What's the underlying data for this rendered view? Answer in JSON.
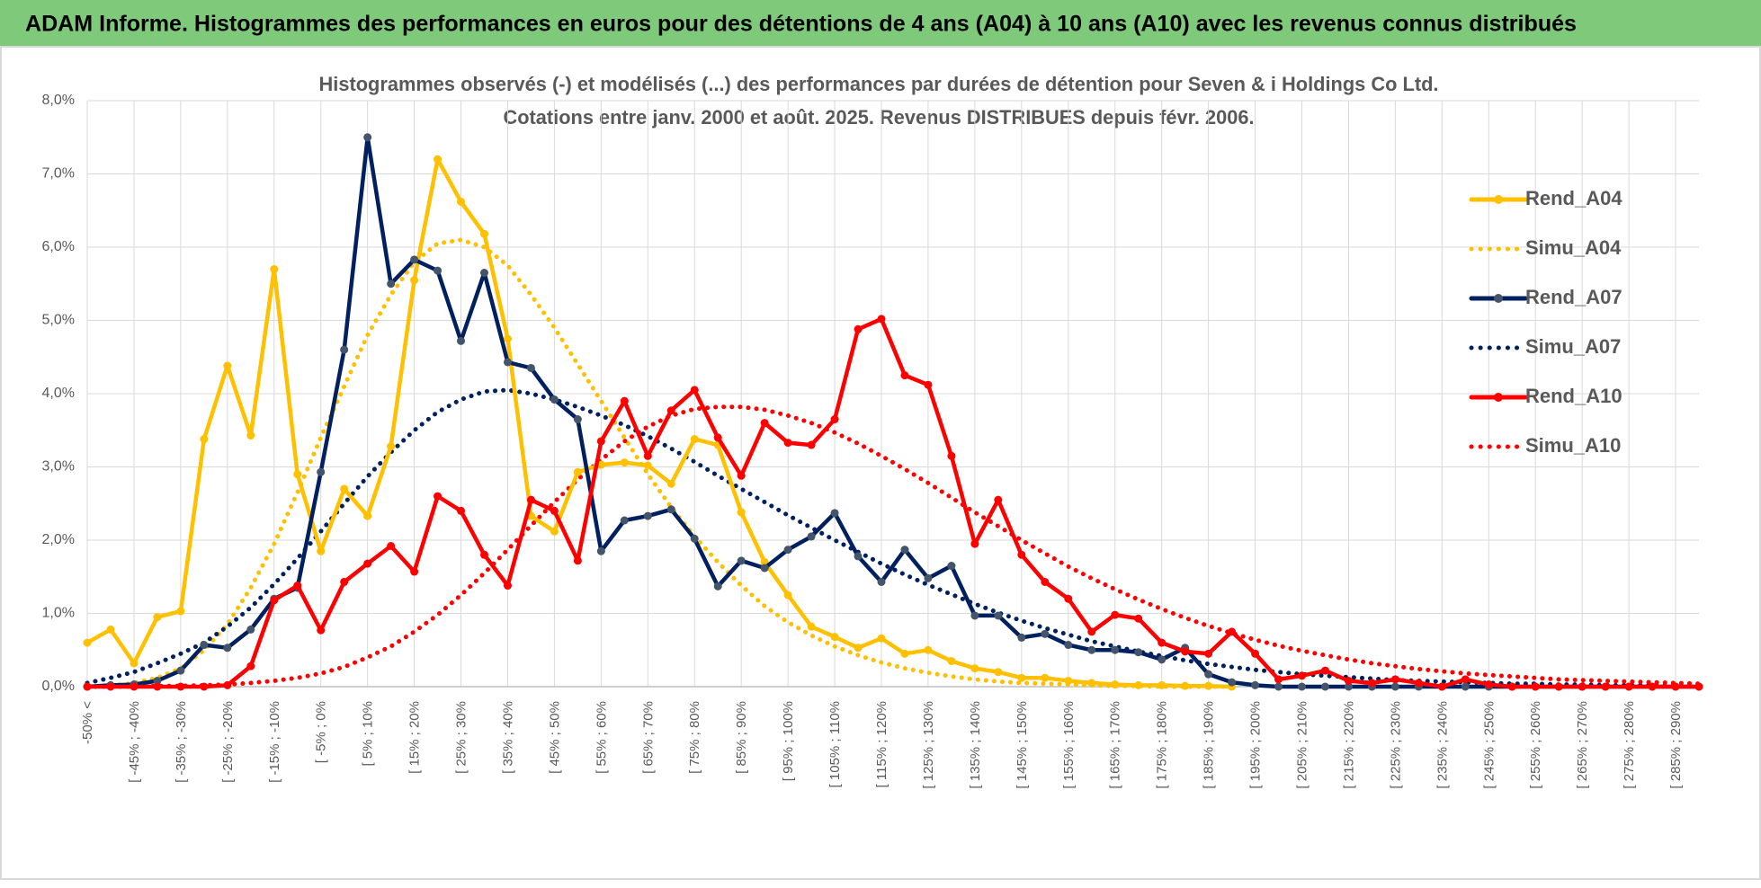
{
  "header": {
    "title": "ADAM Informe. Histogrammes des performances en euros pour des détentions de 4 ans (A04) à 10 ans (A10) avec les revenus connus distribués"
  },
  "chart_data": {
    "type": "line",
    "title": "Histogrammes observés (-) et modélisés (...) des performances par durées de détention pour Seven & i Holdings Co Ltd.",
    "subtitle": "Cotations entre janv. 2000 et août. 2025. Revenus DISTRIBUES depuis févr. 2006.",
    "categories": [
      "-50% <",
      null,
      "[ -45% ; -40%",
      null,
      "[ -35% ; -30%",
      null,
      "[ -25% ; -20%",
      null,
      "[ -15% ; -10%",
      null,
      "[ -5% ; 0%",
      null,
      "[ 5% ; 10%",
      null,
      "[ 15% ; 20%",
      null,
      "[ 25% ; 30%",
      null,
      "[ 35% ; 40%",
      null,
      "[ 45% ; 50%",
      null,
      "[ 55% ; 60%",
      null,
      "[ 65% ; 70%",
      null,
      "[ 75% ; 80%",
      null,
      "[ 85% ; 90%",
      null,
      "[ 95% ; 100%",
      null,
      "[ 105% ; 110%",
      null,
      "[ 115% ; 120%",
      null,
      "[ 125% ; 130%",
      null,
      "[ 135% ; 140%",
      null,
      "[ 145% ; 150%",
      null,
      "[ 155% ; 160%",
      null,
      "[ 165% ; 170%",
      null,
      "[ 175% ; 180%",
      null,
      "[ 185% ; 190%",
      null,
      "[ 195% ; 200%",
      null,
      "[ 205% ; 210%",
      null,
      "[ 215% ; 220%",
      null,
      "[ 225% ; 230%",
      null,
      "[ 235% ; 240%",
      null,
      "[ 245% ; 250%",
      null,
      "[ 255% ; 260%",
      null,
      "[ 265% ; 270%",
      null,
      "[ 275% ; 280%",
      null,
      "[ 285% ; 290%",
      null
    ],
    "ylim": [
      0,
      8
    ],
    "yticks": [
      {
        "value": 0,
        "label": "0,0%"
      },
      {
        "value": 1,
        "label": "1,0%"
      },
      {
        "value": 2,
        "label": "2,0%"
      },
      {
        "value": 3,
        "label": "3,0%"
      },
      {
        "value": 4,
        "label": "4,0%"
      },
      {
        "value": 5,
        "label": "5,0%"
      },
      {
        "value": 6,
        "label": "6,0%"
      },
      {
        "value": 7,
        "label": "7,0%"
      },
      {
        "value": 8,
        "label": "8,0%"
      }
    ],
    "grid": true,
    "legend": "right",
    "series": [
      {
        "name": "Rend_A04",
        "color": "#ffc000",
        "style": "solid",
        "marker": true,
        "marker_color": "#ffc000",
        "values": [
          0.6,
          0.78,
          0.32,
          0.95,
          1.03,
          3.38,
          4.38,
          3.43,
          5.7,
          2.9,
          1.85,
          2.7,
          2.33,
          3.28,
          5.55,
          7.2,
          6.62,
          6.18,
          4.75,
          2.33,
          2.12,
          2.93,
          3.03,
          3.06,
          3.02,
          2.77,
          3.38,
          3.3,
          2.38,
          1.7,
          1.25,
          0.82,
          0.68,
          0.53,
          0.66,
          0.45,
          0.5,
          0.35,
          0.25,
          0.2,
          0.12,
          0.12,
          0.08,
          0.05,
          0.03,
          0.02,
          0.02,
          0.01,
          0.01,
          0,
          null,
          null,
          null,
          null,
          null,
          null,
          null,
          null,
          null,
          null,
          null,
          null,
          null,
          null,
          null,
          null,
          null,
          null,
          null,
          null
        ]
      },
      {
        "name": "Simu_A04",
        "color": "#ffc000",
        "style": "dotted",
        "marker": false,
        "values": [
          0,
          0.01,
          0.05,
          0.12,
          0.25,
          0.5,
          0.85,
          1.35,
          1.95,
          2.65,
          3.4,
          4.1,
          4.8,
          5.35,
          5.8,
          6.05,
          6.1,
          6.0,
          5.75,
          5.35,
          4.9,
          4.4,
          3.9,
          3.4,
          2.9,
          2.45,
          2.05,
          1.7,
          1.38,
          1.1,
          0.88,
          0.7,
          0.55,
          0.43,
          0.33,
          0.25,
          0.19,
          0.14,
          0.1,
          0.07,
          0.05,
          0.04,
          0.03,
          0.02,
          0.01,
          0.01,
          0,
          0,
          0,
          0,
          null,
          null,
          null,
          null,
          null,
          null,
          null,
          null,
          null,
          null,
          null,
          null,
          null,
          null,
          null,
          null,
          null,
          null,
          null,
          null
        ]
      },
      {
        "name": "Rend_A07",
        "color": "#002060",
        "style": "solid",
        "marker": true,
        "marker_color": "#44546a",
        "values": [
          0,
          0.02,
          0.03,
          0.08,
          0.22,
          0.57,
          0.53,
          0.78,
          1.2,
          1.35,
          2.93,
          4.6,
          7.5,
          5.5,
          5.83,
          5.68,
          4.72,
          5.65,
          4.43,
          4.35,
          3.92,
          3.65,
          1.85,
          2.27,
          2.33,
          2.42,
          2.02,
          1.37,
          1.72,
          1.62,
          1.87,
          2.05,
          2.37,
          1.78,
          1.43,
          1.87,
          1.48,
          1.65,
          0.97,
          0.97,
          0.67,
          0.72,
          0.57,
          0.5,
          0.5,
          0.47,
          0.37,
          0.53,
          0.17,
          0.06,
          0.02,
          0,
          0,
          0,
          0,
          0,
          0,
          0,
          0,
          0,
          0,
          0,
          0,
          0,
          0,
          0,
          0,
          0,
          0,
          0
        ]
      },
      {
        "name": "Simu_A07",
        "color": "#002060",
        "style": "dotted",
        "marker": false,
        "values": [
          0.05,
          0.12,
          0.2,
          0.32,
          0.45,
          0.6,
          0.82,
          1.08,
          1.4,
          1.75,
          2.12,
          2.5,
          2.87,
          3.2,
          3.5,
          3.75,
          3.92,
          4.03,
          4.05,
          4.0,
          3.92,
          3.82,
          3.7,
          3.57,
          3.42,
          3.25,
          3.07,
          2.88,
          2.7,
          2.52,
          2.34,
          2.17,
          2.0,
          1.84,
          1.68,
          1.53,
          1.39,
          1.26,
          1.13,
          1.01,
          0.9,
          0.8,
          0.71,
          0.62,
          0.55,
          0.48,
          0.42,
          0.36,
          0.31,
          0.27,
          0.23,
          0.2,
          0.17,
          0.15,
          0.13,
          0.11,
          0.09,
          0.08,
          0.07,
          0.06,
          0.05,
          0.04,
          0.04,
          0.03,
          0.03,
          0.02,
          0.02,
          0.02,
          0.01,
          0.01
        ]
      },
      {
        "name": "Rend_A10",
        "color": "#ff0000",
        "style": "solid",
        "marker": true,
        "marker_color": "#ff0000",
        "values": [
          0,
          0,
          0,
          0,
          0,
          0,
          0.02,
          0.28,
          1.18,
          1.38,
          0.77,
          1.43,
          1.68,
          1.92,
          1.57,
          2.6,
          2.4,
          1.8,
          1.38,
          2.55,
          2.4,
          1.72,
          3.35,
          3.9,
          3.15,
          3.77,
          4.05,
          3.4,
          2.88,
          3.6,
          3.33,
          3.3,
          3.65,
          4.88,
          5.02,
          4.25,
          4.12,
          3.15,
          1.95,
          2.55,
          1.8,
          1.43,
          1.2,
          0.75,
          0.98,
          0.93,
          0.6,
          0.48,
          0.45,
          0.75,
          0.45,
          0.1,
          0.15,
          0.22,
          0.08,
          0.05,
          0.1,
          0.05,
          0,
          0.1,
          0.03,
          0,
          0,
          0,
          0,
          0,
          0,
          0,
          0,
          0
        ]
      },
      {
        "name": "Simu_A10",
        "color": "#ff0000",
        "style": "dotted",
        "marker": false,
        "values": [
          0,
          0,
          0,
          0.01,
          0.01,
          0.02,
          0.03,
          0.05,
          0.08,
          0.12,
          0.18,
          0.27,
          0.4,
          0.55,
          0.75,
          0.98,
          1.25,
          1.55,
          1.87,
          2.2,
          2.52,
          2.83,
          3.1,
          3.35,
          3.55,
          3.7,
          3.79,
          3.82,
          3.82,
          3.78,
          3.7,
          3.6,
          3.47,
          3.32,
          3.15,
          2.97,
          2.78,
          2.58,
          2.38,
          2.19,
          2.0,
          1.82,
          1.64,
          1.48,
          1.33,
          1.19,
          1.06,
          0.94,
          0.83,
          0.73,
          0.64,
          0.56,
          0.49,
          0.43,
          0.37,
          0.32,
          0.28,
          0.24,
          0.21,
          0.18,
          0.16,
          0.14,
          0.12,
          0.1,
          0.09,
          0.08,
          0.07,
          0.06,
          0.05,
          0.04
        ]
      }
    ]
  }
}
